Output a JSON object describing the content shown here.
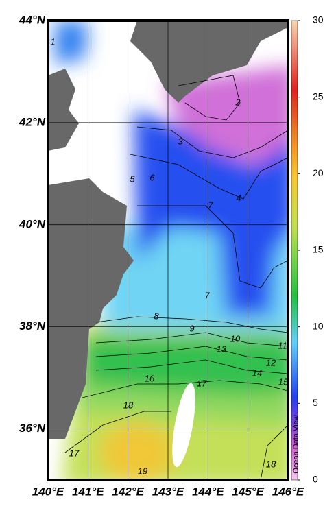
{
  "map": {
    "xlim": [
      140,
      146
    ],
    "ylim": [
      35,
      44
    ],
    "xticks": [
      {
        "value": 140,
        "label": "140°E"
      },
      {
        "value": 141,
        "label": "141°E"
      },
      {
        "value": 142,
        "label": "142°E"
      },
      {
        "value": 143,
        "label": "143°E"
      },
      {
        "value": 144,
        "label": "144°E"
      },
      {
        "value": 145,
        "label": "145°E"
      },
      {
        "value": 146,
        "label": "146°E"
      }
    ],
    "yticks": [
      {
        "value": 36,
        "label": "36°N"
      },
      {
        "value": 38,
        "label": "38°N"
      },
      {
        "value": 40,
        "label": "40°N"
      },
      {
        "value": 42,
        "label": "42°N"
      },
      {
        "value": 44,
        "label": "44°N"
      }
    ],
    "colorbar": {
      "lim": [
        0,
        30
      ],
      "ticks": [
        0,
        5,
        10,
        15,
        20,
        25,
        30
      ]
    },
    "contour_labels": [
      1,
      2,
      3,
      5,
      6,
      7,
      4,
      7,
      8,
      9,
      10,
      11,
      13,
      12,
      14,
      15,
      16,
      17,
      18,
      17,
      18,
      19
    ],
    "credit": "Ocean Data View"
  }
}
